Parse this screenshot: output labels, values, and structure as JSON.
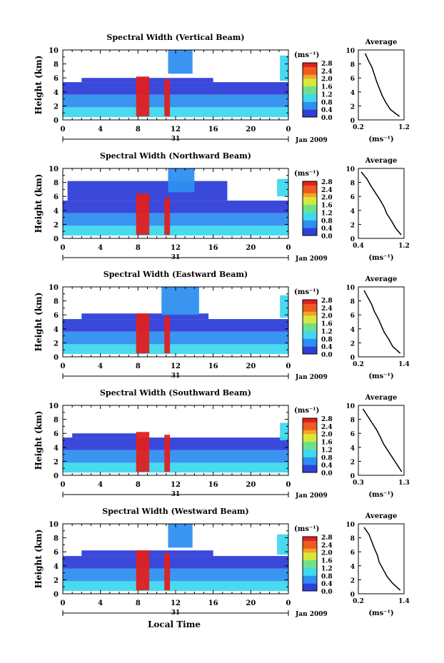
{
  "figure": {
    "x_label": "Local Time",
    "day_label": "31",
    "month_label": "Jan 2009"
  },
  "chart_data": [
    {
      "type": "heatmap",
      "title": "Spectral Width (Vertical Beam)",
      "ylabel": "Height (km)",
      "xlim": [
        0,
        24
      ],
      "ylim": [
        0,
        10
      ],
      "x_ticks": [
        "0",
        "4",
        "8",
        "12",
        "16",
        "20",
        "0"
      ],
      "y_ticks": [
        "0",
        "2",
        "4",
        "6",
        "8",
        "10"
      ],
      "colorbar": {
        "unit": "(ms⁻¹)",
        "ticks": [
          "0.0",
          "0.4",
          "0.8",
          "1.2",
          "1.6",
          "2.0",
          "2.4",
          "2.8"
        ],
        "range": [
          0,
          2.8
        ]
      },
      "bands": [
        {
          "x0": 0,
          "x1": 24,
          "y0": 0.4,
          "y1": 1.8,
          "v": 1.0
        },
        {
          "x0": 0,
          "x1": 24,
          "y0": 1.8,
          "y1": 3.6,
          "v": 0.5
        },
        {
          "x0": 0,
          "x1": 24,
          "y0": 3.6,
          "y1": 5.4,
          "v": 0.3
        },
        {
          "x0": 2,
          "x1": 16,
          "y0": 5.4,
          "y1": 6.0,
          "v": 0.3
        },
        {
          "x0": 7.8,
          "x1": 9.2,
          "y0": 0.5,
          "y1": 6.2,
          "v": 2.8
        },
        {
          "x0": 10.8,
          "x1": 11.4,
          "y0": 0.5,
          "y1": 5.8,
          "v": 2.7
        },
        {
          "x0": 11.2,
          "x1": 13.8,
          "y0": 6.6,
          "y1": 10.0,
          "v": 0.7
        },
        {
          "x0": 23.1,
          "x1": 24,
          "y0": 5.6,
          "y1": 9.2,
          "v": 0.8
        }
      ],
      "average": {
        "title": "Average",
        "xlabel": "(ms⁻¹)",
        "x_ticks": [
          "0.2",
          "1.2"
        ],
        "xlim": [
          0.2,
          1.2
        ],
        "x": [
          0.35,
          0.42,
          0.5,
          0.55,
          0.6,
          0.66,
          0.72,
          0.8,
          0.9,
          1.1
        ],
        "y": [
          9.5,
          8.5,
          7.5,
          6.5,
          5.5,
          4.5,
          3.5,
          2.5,
          1.5,
          0.5
        ]
      }
    },
    {
      "type": "heatmap",
      "title": "Spectral Width (Northward Beam)",
      "ylabel": "Height (km)",
      "xlim": [
        0,
        24
      ],
      "ylim": [
        0,
        10
      ],
      "x_ticks": [
        "0",
        "4",
        "8",
        "12",
        "16",
        "20",
        "0"
      ],
      "y_ticks": [
        "0",
        "2",
        "4",
        "6",
        "8",
        "10"
      ],
      "colorbar": {
        "unit": "(ms⁻¹)",
        "ticks": [
          "0.0",
          "0.4",
          "0.8",
          "1.2",
          "1.6",
          "2.0",
          "2.4",
          "2.8"
        ],
        "range": [
          0,
          2.8
        ]
      },
      "bands": [
        {
          "x0": 0,
          "x1": 24,
          "y0": 0.4,
          "y1": 1.8,
          "v": 1.0
        },
        {
          "x0": 0,
          "x1": 24,
          "y0": 1.8,
          "y1": 3.6,
          "v": 0.5
        },
        {
          "x0": 0,
          "x1": 24,
          "y0": 3.6,
          "y1": 5.4,
          "v": 0.3
        },
        {
          "x0": 0.5,
          "x1": 17.5,
          "y0": 5.4,
          "y1": 8.2,
          "v": 0.25
        },
        {
          "x0": 7.8,
          "x1": 9.2,
          "y0": 0.5,
          "y1": 6.4,
          "v": 2.8
        },
        {
          "x0": 10.8,
          "x1": 11.4,
          "y0": 0.5,
          "y1": 5.8,
          "v": 2.7
        },
        {
          "x0": 11.2,
          "x1": 14.0,
          "y0": 6.6,
          "y1": 10.0,
          "v": 0.7
        },
        {
          "x0": 22.8,
          "x1": 24,
          "y0": 6.0,
          "y1": 8.5,
          "v": 0.8
        }
      ],
      "average": {
        "title": "Average",
        "xlabel": "(ms⁻¹)",
        "x_ticks": [
          "0.4",
          "1.2"
        ],
        "xlim": [
          0.4,
          1.2
        ],
        "x": [
          0.45,
          0.55,
          0.62,
          0.7,
          0.78,
          0.85,
          0.9,
          0.98,
          1.05,
          1.15
        ],
        "y": [
          9.5,
          8.5,
          7.5,
          6.5,
          5.5,
          4.5,
          3.5,
          2.5,
          1.5,
          0.5
        ]
      }
    },
    {
      "type": "heatmap",
      "title": "Spectral Width (Eastward Beam)",
      "ylabel": "Height (km)",
      "xlim": [
        0,
        24
      ],
      "ylim": [
        0,
        10
      ],
      "x_ticks": [
        "0",
        "4",
        "8",
        "12",
        "16",
        "20",
        "0"
      ],
      "y_ticks": [
        "0",
        "2",
        "4",
        "6",
        "8",
        "10"
      ],
      "colorbar": {
        "unit": "(ms⁻¹)",
        "ticks": [
          "0.0",
          "0.4",
          "0.8",
          "1.2",
          "1.6",
          "2.0",
          "2.4",
          "2.8"
        ],
        "range": [
          0,
          2.8
        ]
      },
      "bands": [
        {
          "x0": 0,
          "x1": 24,
          "y0": 0.4,
          "y1": 1.8,
          "v": 1.0
        },
        {
          "x0": 0,
          "x1": 24,
          "y0": 1.8,
          "y1": 3.6,
          "v": 0.5
        },
        {
          "x0": 0,
          "x1": 24,
          "y0": 3.6,
          "y1": 5.4,
          "v": 0.3
        },
        {
          "x0": 2,
          "x1": 15.5,
          "y0": 5.4,
          "y1": 6.2,
          "v": 0.3
        },
        {
          "x0": 7.8,
          "x1": 9.2,
          "y0": 0.5,
          "y1": 6.2,
          "v": 2.8
        },
        {
          "x0": 10.8,
          "x1": 11.4,
          "y0": 0.5,
          "y1": 5.8,
          "v": 2.7
        },
        {
          "x0": 10.5,
          "x1": 14.5,
          "y0": 6.0,
          "y1": 10.0,
          "v": 0.7
        },
        {
          "x0": 23.1,
          "x1": 24,
          "y0": 5.6,
          "y1": 8.8,
          "v": 0.8
        }
      ],
      "average": {
        "title": "Average",
        "xlabel": "(ms⁻¹)",
        "x_ticks": [
          "0.2",
          "1.4"
        ],
        "xlim": [
          0.2,
          1.4
        ],
        "x": [
          0.35,
          0.45,
          0.55,
          0.62,
          0.72,
          0.8,
          0.88,
          1.0,
          1.1,
          1.3
        ],
        "y": [
          9.5,
          8.5,
          7.5,
          6.5,
          5.5,
          4.5,
          3.5,
          2.5,
          1.5,
          0.5
        ]
      }
    },
    {
      "type": "heatmap",
      "title": "Spectral Width (Southward Beam)",
      "ylabel": "Height (km)",
      "xlim": [
        0,
        24
      ],
      "ylim": [
        0,
        10
      ],
      "x_ticks": [
        "0",
        "4",
        "8",
        "12",
        "16",
        "20",
        "0"
      ],
      "y_ticks": [
        "0",
        "2",
        "4",
        "6",
        "8",
        "10"
      ],
      "colorbar": {
        "unit": "(ms⁻¹)",
        "ticks": [
          "0.0",
          "0.4",
          "0.8",
          "1.2",
          "1.6",
          "2.0",
          "2.4",
          "2.8"
        ],
        "range": [
          0,
          2.8
        ]
      },
      "bands": [
        {
          "x0": 0,
          "x1": 24,
          "y0": 0.4,
          "y1": 1.8,
          "v": 1.0
        },
        {
          "x0": 0,
          "x1": 24,
          "y0": 1.8,
          "y1": 3.6,
          "v": 0.5
        },
        {
          "x0": 0,
          "x1": 24,
          "y0": 3.6,
          "y1": 5.4,
          "v": 0.3
        },
        {
          "x0": 1,
          "x1": 8,
          "y0": 5.4,
          "y1": 6.0,
          "v": 0.3
        },
        {
          "x0": 7.8,
          "x1": 9.2,
          "y0": 0.5,
          "y1": 6.2,
          "v": 2.8
        },
        {
          "x0": 10.8,
          "x1": 11.4,
          "y0": 0.5,
          "y1": 5.8,
          "v": 2.7
        },
        {
          "x0": 23.1,
          "x1": 24,
          "y0": 5.0,
          "y1": 7.5,
          "v": 0.8
        }
      ],
      "average": {
        "title": "Average",
        "xlabel": "(ms⁻¹)",
        "x_ticks": [
          "0.3",
          "1.3"
        ],
        "xlim": [
          0.3,
          1.3
        ],
        "x": [
          0.4,
          0.5,
          0.6,
          0.7,
          0.78,
          0.85,
          0.95,
          1.05,
          1.15,
          1.25
        ],
        "y": [
          9.5,
          8.5,
          7.5,
          6.5,
          5.5,
          4.5,
          3.5,
          2.5,
          1.5,
          0.5
        ]
      }
    },
    {
      "type": "heatmap",
      "title": "Spectral Width (Westward Beam)",
      "ylabel": "Height (km)",
      "xlim": [
        0,
        24
      ],
      "ylim": [
        0,
        10
      ],
      "x_ticks": [
        "0",
        "4",
        "8",
        "12",
        "16",
        "20",
        "0"
      ],
      "y_ticks": [
        "0",
        "2",
        "4",
        "6",
        "8",
        "10"
      ],
      "colorbar": {
        "unit": "(ms⁻¹)",
        "ticks": [
          "0.0",
          "0.4",
          "0.8",
          "1.2",
          "1.6",
          "2.0",
          "2.4",
          "2.8"
        ],
        "range": [
          0,
          2.8
        ]
      },
      "bands": [
        {
          "x0": 0,
          "x1": 24,
          "y0": 0.4,
          "y1": 1.8,
          "v": 1.0
        },
        {
          "x0": 0,
          "x1": 24,
          "y0": 1.8,
          "y1": 3.6,
          "v": 0.5
        },
        {
          "x0": 0,
          "x1": 24,
          "y0": 3.6,
          "y1": 5.4,
          "v": 0.3
        },
        {
          "x0": 2,
          "x1": 16,
          "y0": 5.4,
          "y1": 6.2,
          "v": 0.3
        },
        {
          "x0": 7.8,
          "x1": 9.2,
          "y0": 0.5,
          "y1": 6.2,
          "v": 2.8
        },
        {
          "x0": 10.8,
          "x1": 11.4,
          "y0": 0.5,
          "y1": 5.8,
          "v": 2.7
        },
        {
          "x0": 11.2,
          "x1": 13.8,
          "y0": 6.6,
          "y1": 10.0,
          "v": 0.7
        },
        {
          "x0": 22.8,
          "x1": 24,
          "y0": 5.6,
          "y1": 8.5,
          "v": 0.8
        }
      ],
      "average": {
        "title": "Average",
        "xlabel": "(ms⁻¹)",
        "x_ticks": [
          "0.2",
          "1.4"
        ],
        "xlim": [
          0.2,
          1.4
        ],
        "x": [
          0.35,
          0.48,
          0.55,
          0.62,
          0.7,
          0.75,
          0.85,
          0.95,
          1.1,
          1.3
        ],
        "y": [
          9.5,
          8.5,
          7.5,
          6.5,
          5.5,
          4.5,
          3.5,
          2.5,
          1.5,
          0.5
        ]
      }
    }
  ]
}
